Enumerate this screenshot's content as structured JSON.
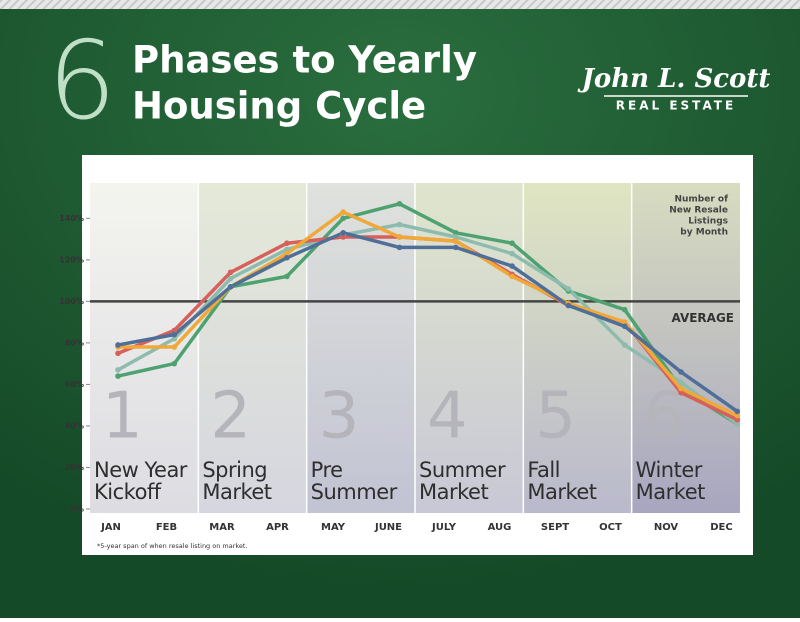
{
  "header": {
    "number": "6",
    "title_lines": [
      "Phases to Yearly",
      "Housing Cycle"
    ]
  },
  "logo": {
    "name": "John L. Scott",
    "tagline": "REAL ESTATE"
  },
  "chart_data": {
    "type": "line",
    "categories": [
      "JAN",
      "FEB",
      "MAR",
      "APR",
      "MAY",
      "JUNE",
      "JULY",
      "AUG",
      "SEPT",
      "OCT",
      "NOV",
      "DEC"
    ],
    "series": [
      {
        "color": "#4ea271",
        "values": [
          64,
          70,
          107,
          112,
          140,
          147,
          133,
          128,
          105,
          96,
          58,
          41
        ]
      },
      {
        "color": "#8dbcae",
        "values": [
          67,
          82,
          111,
          125,
          132,
          137,
          131,
          123,
          106,
          79,
          61,
          41
        ]
      },
      {
        "color": "#d8605a",
        "values": [
          75,
          86,
          114,
          128,
          131,
          131,
          129,
          113,
          98,
          90,
          56,
          43
        ]
      },
      {
        "color": "#f0a838",
        "values": [
          78,
          78,
          107,
          123,
          143,
          131,
          129,
          112,
          99,
          90,
          58,
          45
        ]
      },
      {
        "color": "#4f6f99",
        "values": [
          79,
          84,
          107,
          121,
          133,
          126,
          126,
          117,
          98,
          88,
          66,
          47
        ]
      }
    ],
    "ylim": [
      0,
      157
    ],
    "yticks": [
      {
        "value": 0,
        "label": "0%"
      },
      {
        "value": 20,
        "label": "20%"
      },
      {
        "value": 40,
        "label": "40%"
      },
      {
        "value": 60,
        "label": "60%"
      },
      {
        "value": 80,
        "label": "80%"
      },
      {
        "value": 100,
        "label": "100%"
      },
      {
        "value": 120,
        "label": "120%"
      },
      {
        "value": 140,
        "label": "140%"
      }
    ],
    "reference_line": {
      "value": 100,
      "label": "AVERAGE"
    },
    "annotation": [
      "Number of",
      "New Resale",
      "Listings",
      "by Month"
    ],
    "footnote": "*5-year span of when resale listing on market.",
    "phases": [
      {
        "number": "1",
        "name": [
          "New Year",
          "Kickoff"
        ]
      },
      {
        "number": "2",
        "name": [
          "Spring",
          "Market"
        ]
      },
      {
        "number": "3",
        "name": [
          "Pre",
          "Summer"
        ]
      },
      {
        "number": "4",
        "name": [
          "Summer",
          "Market"
        ]
      },
      {
        "number": "5",
        "name": [
          "Fall",
          "Market"
        ]
      },
      {
        "number": "6",
        "name": [
          "Winter",
          "Market"
        ]
      }
    ]
  }
}
